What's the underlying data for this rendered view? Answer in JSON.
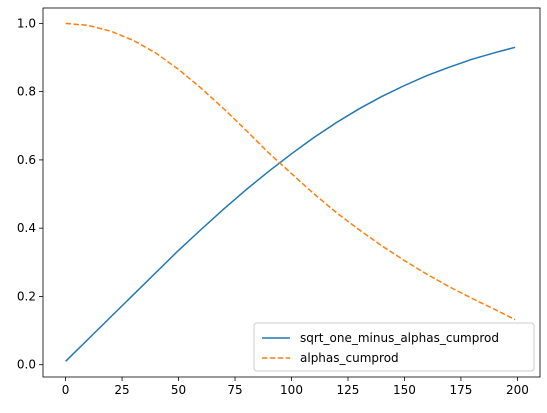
{
  "chart_data": {
    "type": "line",
    "title": "",
    "xlabel": "",
    "ylabel": "",
    "xlim": [
      -10,
      210
    ],
    "ylim": [
      -0.036,
      1.045
    ],
    "x_ticks": [
      0,
      25,
      50,
      75,
      100,
      125,
      150,
      175,
      200
    ],
    "y_ticks": [
      0.0,
      0.2,
      0.4,
      0.6,
      0.8,
      1.0
    ],
    "x_tick_labels": [
      "0",
      "25",
      "50",
      "75",
      "100",
      "125",
      "150",
      "175",
      "200"
    ],
    "y_tick_labels": [
      "0.0",
      "0.2",
      "0.4",
      "0.6",
      "0.8",
      "1.0"
    ],
    "grid": false,
    "legend_position": "lower-right",
    "x": [
      0,
      10,
      20,
      30,
      40,
      50,
      60,
      70,
      80,
      90,
      100,
      110,
      120,
      130,
      140,
      150,
      160,
      170,
      180,
      190,
      199
    ],
    "series": [
      {
        "name": "sqrt_one_minus_alphas_cumprod",
        "color": "#1f77b4",
        "style": "solid",
        "values": [
          0.01,
          0.075,
          0.14,
          0.205,
          0.27,
          0.335,
          0.396,
          0.456,
          0.513,
          0.567,
          0.618,
          0.666,
          0.71,
          0.75,
          0.786,
          0.818,
          0.847,
          0.872,
          0.895,
          0.914,
          0.93
        ]
      },
      {
        "name": "alphas_cumprod",
        "color": "#ff7f0e",
        "style": "dashed",
        "values": [
          1.0,
          0.994,
          0.977,
          0.95,
          0.913,
          0.865,
          0.81,
          0.75,
          0.686,
          0.62,
          0.56,
          0.5,
          0.445,
          0.395,
          0.348,
          0.305,
          0.265,
          0.228,
          0.194,
          0.162,
          0.132
        ]
      }
    ]
  }
}
